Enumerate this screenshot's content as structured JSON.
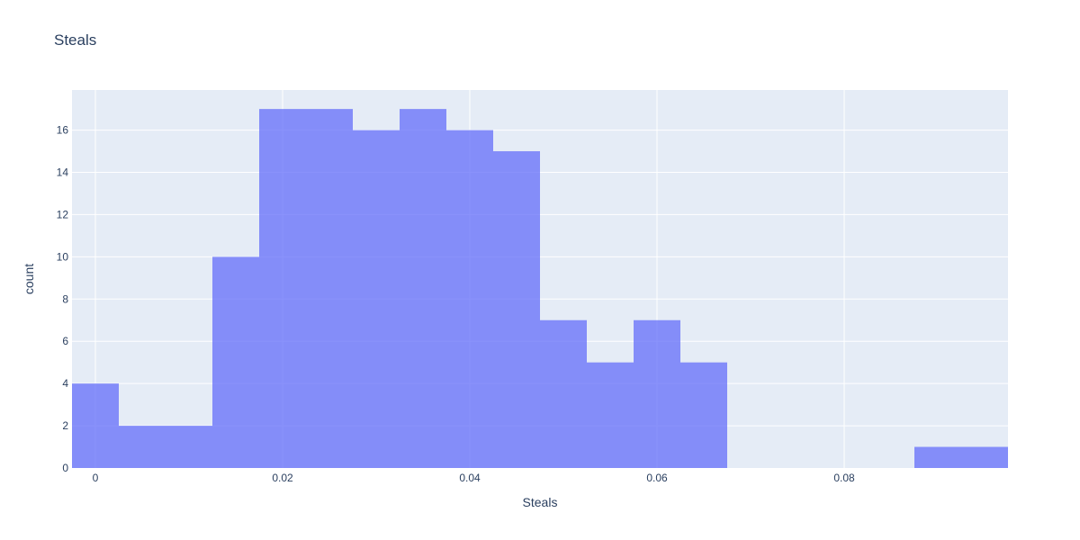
{
  "chart_data": {
    "type": "bar",
    "subtype": "histogram",
    "title": "Steals",
    "xlabel": "Steals",
    "ylabel": "count",
    "bin_width": 0.005,
    "bins_start": [
      -0.0025,
      0.0025,
      0.0075,
      0.0125,
      0.0175,
      0.0225,
      0.0275,
      0.0325,
      0.0375,
      0.0425,
      0.0475,
      0.0525,
      0.0575,
      0.0625,
      0.0675,
      0.0725,
      0.0775,
      0.0825,
      0.0875,
      0.0925
    ],
    "counts": [
      4,
      2,
      2,
      10,
      17,
      17,
      16,
      17,
      16,
      15,
      7,
      5,
      7,
      5,
      0,
      0,
      0,
      0,
      1,
      1
    ],
    "xlim": [
      -0.0025,
      0.0975
    ],
    "ylim": [
      0,
      17.9
    ],
    "x_ticks": [
      0,
      0.02,
      0.04,
      0.06,
      0.08
    ],
    "x_tick_labels": [
      "0",
      "0.02",
      "0.04",
      "0.06",
      "0.08"
    ],
    "y_ticks": [
      0,
      2,
      4,
      6,
      8,
      10,
      12,
      14,
      16
    ],
    "y_tick_labels": [
      "0",
      "2",
      "4",
      "6",
      "8",
      "10",
      "12",
      "14",
      "16"
    ],
    "grid": true,
    "legend": "none",
    "colors": {
      "bar": "#636efa",
      "plot_background": "#e5ecf6",
      "text": "#2a3f5f",
      "grid": "#ffffff"
    }
  }
}
